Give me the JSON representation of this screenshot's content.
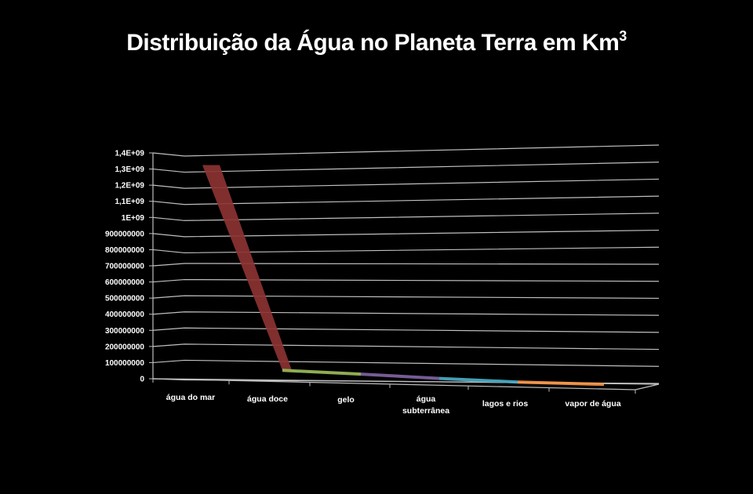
{
  "slide": {
    "title": "Distribuição da Água no Planeta Terra em Km",
    "title_superscript": "3",
    "background": "#000000"
  },
  "chart_data": {
    "type": "line",
    "subtype": "3d-line-ribbon",
    "title": "Distribuição da Água no Planeta Terra em Km³",
    "xlabel": "",
    "ylabel": "",
    "categories": [
      "água do mar",
      "água doce",
      "gelo",
      "água subterrânea",
      "lagos e rios",
      "vapor de água"
    ],
    "series": [
      {
        "name": "Km³",
        "values": [
          1320000000,
          35000000,
          24000000,
          10000000,
          200000,
          13000
        ],
        "segment_colors": [
          "#8B3232",
          "#9BBB59",
          "#8064A2",
          "#4BACC6",
          "#F79646"
        ]
      }
    ],
    "yticks": [
      "0",
      "100000000",
      "200000000",
      "300000000",
      "400000000",
      "500000000",
      "600000000",
      "700000000",
      "800000000",
      "900000000",
      "1E+09",
      "1,1E+09",
      "1,2E+09",
      "1,3E+09",
      "1,4E+09"
    ],
    "ylim": [
      0,
      1400000000
    ],
    "grid": true,
    "legend": "none"
  },
  "axis": {
    "y_labels": [
      "0",
      "100000000",
      "200000000",
      "300000000",
      "400000000",
      "500000000",
      "600000000",
      "700000000",
      "800000000",
      "900000000",
      "1E+09",
      "1,1E+09",
      "1,2E+09",
      "1,3E+09",
      "1,4E+09"
    ],
    "x_labels": [
      "água do mar",
      "água doce",
      "gelo",
      "água",
      "subterrânea",
      "lagos e rios",
      "vapor de água"
    ]
  }
}
